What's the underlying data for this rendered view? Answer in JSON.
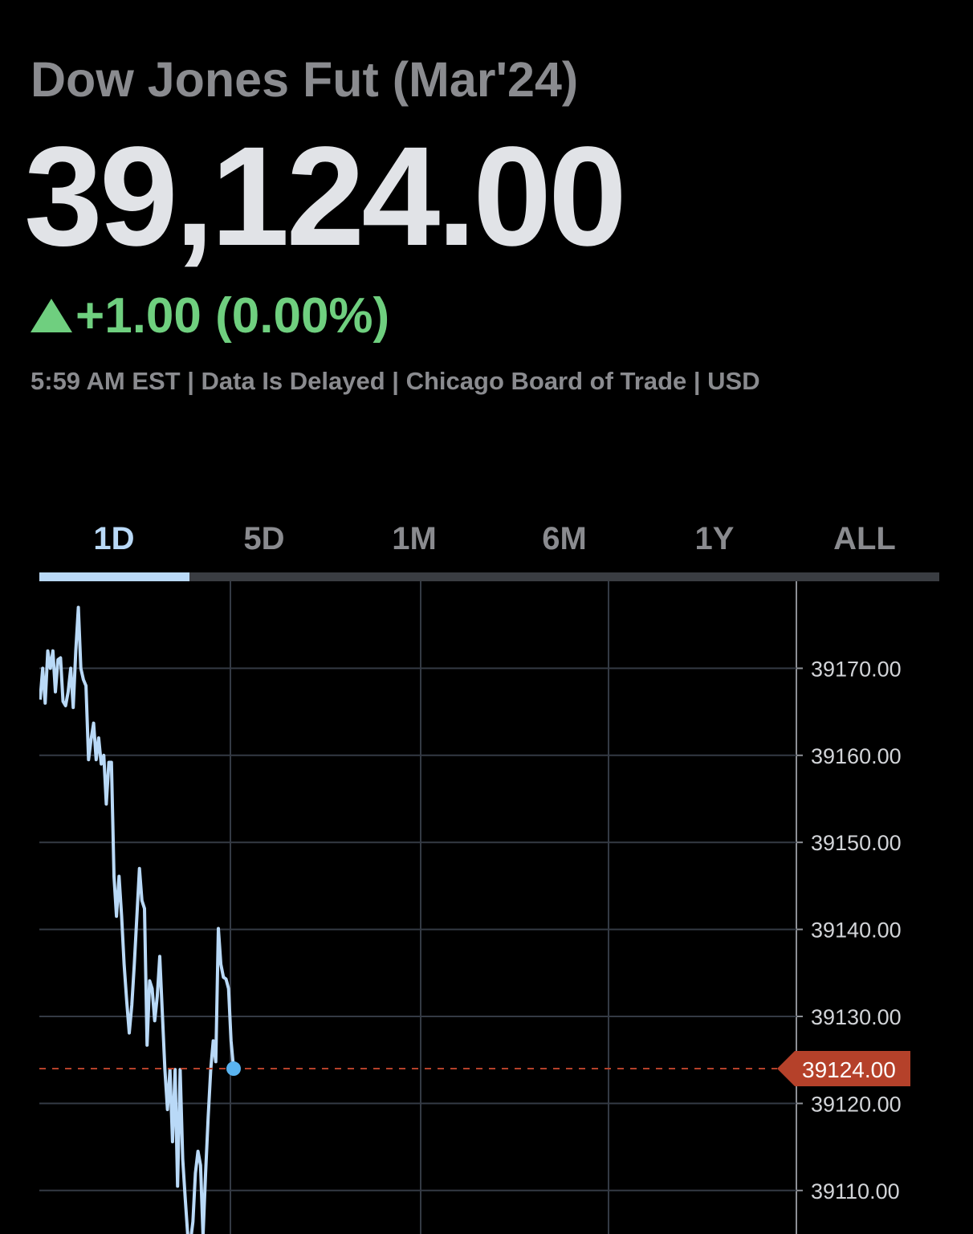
{
  "header": {
    "title": "Dow Jones Fut (Mar'24)",
    "price": "39,124.00",
    "change": "+1.00 (0.00%)",
    "meta": "5:59 AM EST | Data Is Delayed | Chicago Board of Trade | USD"
  },
  "tabs": [
    "1D",
    "5D",
    "1M",
    "6M",
    "1Y",
    "ALL"
  ],
  "chart_data": {
    "type": "line",
    "color": "#b9d9f7",
    "values": [
      39166.4,
      39170,
      39166,
      39172,
      39170,
      39172,
      39167.3,
      39171,
      39171.2,
      39166.2,
      39165.7,
      39167.3,
      39170,
      39165.5,
      39172,
      39177,
      39170,
      39168.7,
      39168,
      39159.5,
      39161.8,
      39163.7,
      39159.5,
      39162,
      39159,
      39160,
      39154.4,
      39159.2,
      39159.2,
      39146.1,
      39141.5,
      39146.1,
      39141.5,
      39136,
      39131.8,
      39128.1,
      39131.3,
      39136,
      39141.5,
      39147,
      39143.3,
      39142.4,
      39126.7,
      39134.1,
      39133.2,
      39129.5,
      39132.3,
      39136.9,
      39130.4,
      39123.9,
      39119.3,
      39123.9,
      39115.6,
      39123.9,
      39110.5,
      39123.9,
      39113.6,
      39109,
      39104.8,
      39104,
      39106.4,
      39112,
      39114.5,
      39112.9,
      39104.8,
      39112,
      39118.4,
      39123.9,
      39127.2,
      39124.8,
      39140.1,
      39136,
      39134.5,
      39134.3,
      39133.2,
      39127.2,
      39124
    ],
    "ylim": [
      39105,
      39180
    ],
    "yticks": [
      {
        "value": 39110,
        "label": "39110.00"
      },
      {
        "value": 39120,
        "label": "39120.00"
      },
      {
        "value": 39130,
        "label": "39130.00"
      },
      {
        "value": 39140,
        "label": "39140.00"
      },
      {
        "value": 39150,
        "label": "39150.00"
      },
      {
        "value": 39160,
        "label": "39160.00"
      },
      {
        "value": 39170,
        "label": "39170.00"
      }
    ],
    "last_price": 39124,
    "last_price_label": "39124.00",
    "last_price_color": "#b5412a",
    "grid": true
  }
}
